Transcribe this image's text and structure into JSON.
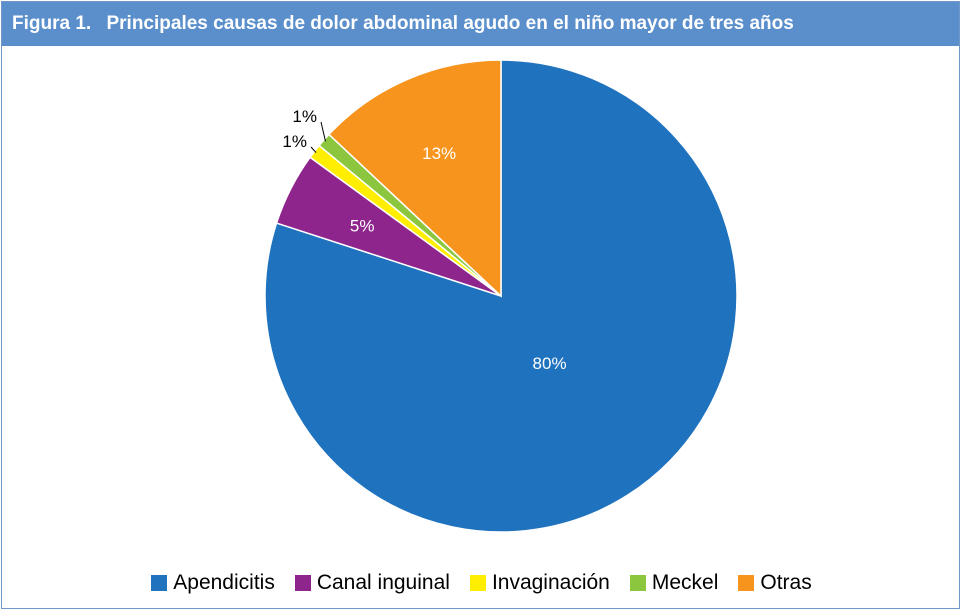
{
  "chart_data": {
    "type": "pie",
    "title_prefix": "Figura 1.",
    "title": "Principales causas de dolor abdominal agudo en el niño mayor de tres años",
    "categories": [
      "Apendicitis",
      "Canal inguinal",
      "Invaginación",
      "Meckel",
      "Otras"
    ],
    "values": [
      80,
      5,
      1,
      1,
      13
    ],
    "labels": [
      "80%",
      "5%",
      "1%",
      "1%",
      "13%"
    ],
    "colors": [
      "#1f72bd",
      "#8e258d",
      "#ffee00",
      "#8cc63e",
      "#f7941d"
    ],
    "legend": "bottom"
  }
}
